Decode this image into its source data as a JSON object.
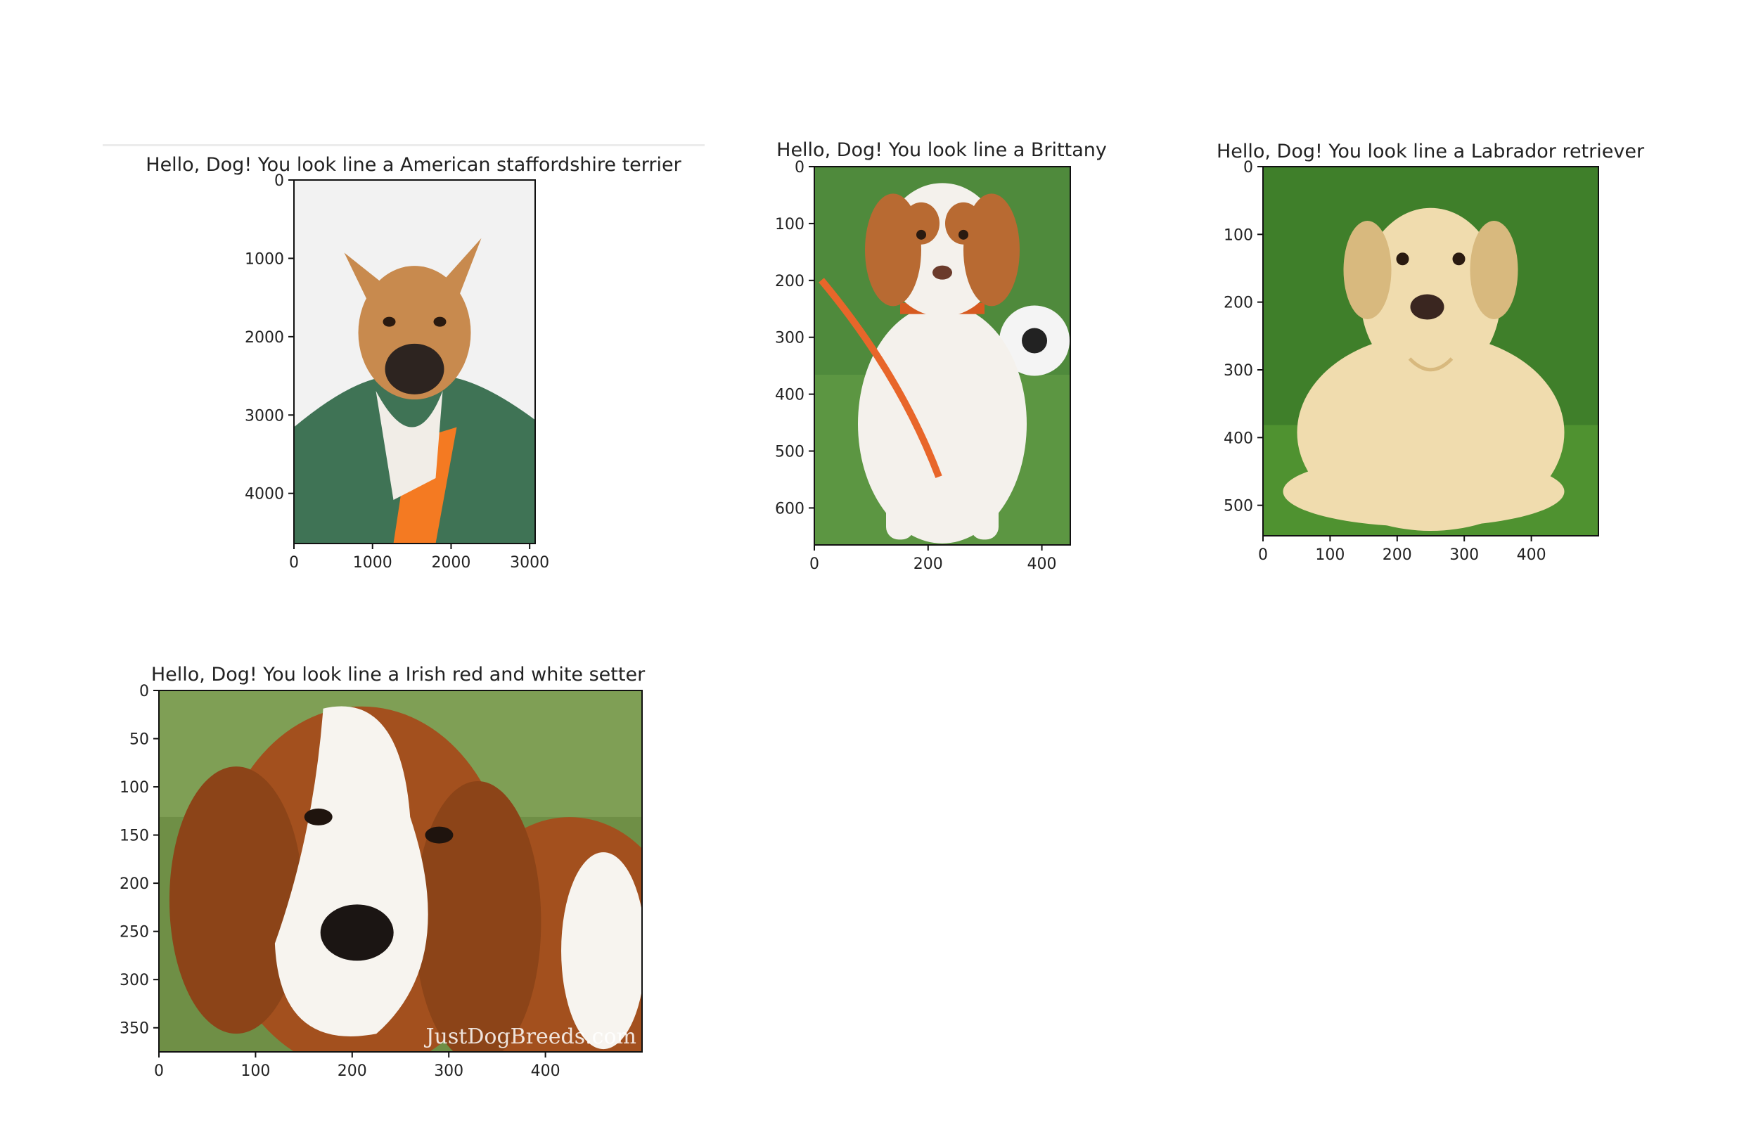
{
  "figures": [
    {
      "title": "Hello, Dog! You look line a American staffordshire terrier",
      "x_ticks": [
        0,
        1000,
        2000,
        3000
      ],
      "y_ticks": [
        0,
        1000,
        2000,
        3000,
        4000
      ],
      "x_range": [
        0,
        3070
      ],
      "y_range": [
        0,
        4640
      ],
      "scene": "staffy",
      "colors": {
        "bg": "#f2f2f2",
        "coat": "#3f7355",
        "fur": "#c88a4e",
        "accent": "#f47a22"
      }
    },
    {
      "title": "Hello, Dog! You look line a Brittany",
      "x_ticks": [
        0,
        200,
        400
      ],
      "y_ticks": [
        0,
        100,
        200,
        300,
        400,
        500,
        600
      ],
      "x_range": [
        0,
        450
      ],
      "y_range": [
        0,
        665
      ],
      "scene": "brittany",
      "colors": {
        "bg": "#4f8a3c",
        "fur": "#b86a32",
        "white": "#f4f1ec",
        "accent": "#e8662a"
      }
    },
    {
      "title": "Hello, Dog! You look line a Labrador retriever",
      "x_ticks": [
        0,
        100,
        200,
        300,
        400
      ],
      "y_ticks": [
        0,
        100,
        200,
        300,
        400,
        500
      ],
      "x_range": [
        0,
        500
      ],
      "y_range": [
        0,
        545
      ],
      "scene": "labrador",
      "colors": {
        "bg": "#3f7f2a",
        "fur": "#f0dcae",
        "shade": "#d8b97e"
      }
    },
    {
      "title": "Hello, Dog! You look line a Irish red and white setter",
      "x_ticks": [
        0,
        100,
        200,
        300,
        400
      ],
      "y_ticks": [
        0,
        50,
        100,
        150,
        200,
        250,
        300,
        350
      ],
      "x_range": [
        0,
        500
      ],
      "y_range": [
        0,
        375
      ],
      "scene": "setter",
      "watermark": "JustDogBreeds.com",
      "colors": {
        "bg": "#6f8f46",
        "fur": "#a3501e",
        "white": "#f7f4ef"
      }
    }
  ]
}
